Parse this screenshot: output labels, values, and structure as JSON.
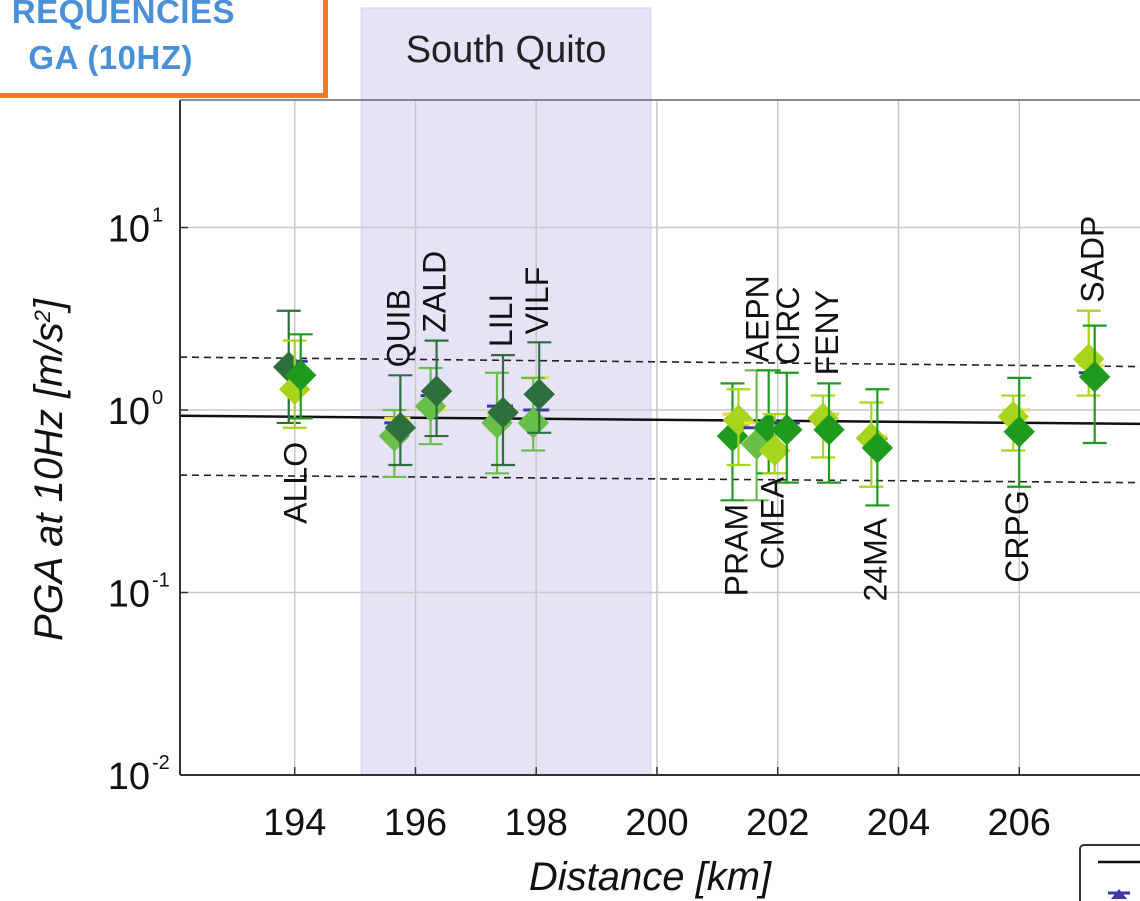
{
  "title_box": {
    "line1": "REQUENCIES",
    "line2": "GA (10HZ)",
    "accent_color": "#ec7b30",
    "text_color": "#4a90d9"
  },
  "chart_data": {
    "type": "scatter",
    "xlabel": "Distance [km]",
    "ylabel_main": "PGA at 10Hz [m/s",
    "ylabel_sup": "2",
    "ylabel_end": "]",
    "yscale": "log",
    "xlim": [
      192.1,
      208.0
    ],
    "ylim": [
      0.01,
      50
    ],
    "x_ticks": [
      194,
      196,
      198,
      200,
      202,
      204,
      206
    ],
    "y_ticks": [
      {
        "value": 10,
        "base": "10",
        "exp": "1"
      },
      {
        "value": 1,
        "base": "10",
        "exp": "0"
      },
      {
        "value": 0.1,
        "base": "10",
        "exp": "-1"
      },
      {
        "value": 0.01,
        "base": "10",
        "exp": "-2"
      }
    ],
    "grid": true,
    "shaded_region": {
      "label": "South Quito",
      "x_range": [
        195.1,
        199.9
      ],
      "color": "#e6e3f7"
    },
    "trend_line": {
      "y_at_xmin": 0.93,
      "y_at_xmax": 0.84
    },
    "bounds_upper": {
      "y_at_xmin": 1.95,
      "y_at_xmax": 1.73
    },
    "bounds_lower": {
      "y_at_xmin": 0.44,
      "y_at_xmax": 0.4
    },
    "colors": {
      "c1": "#2f6f3e",
      "c2": "#1e9a1e",
      "c3": "#6abf4b",
      "c4": "#a8d51c",
      "yellow": "#f2dc4a",
      "blue": "#3b3aa5"
    },
    "stations": [
      {
        "name": "ALLO",
        "x": 194.0,
        "label_pos": "below",
        "blue": 1.85,
        "yellow": 1.6,
        "markers": [
          {
            "c": "c1",
            "y": 1.72,
            "lo": 0.85,
            "hi": 3.5
          },
          {
            "c": "c4",
            "y": 1.3,
            "lo": 0.8,
            "hi": 2.4
          },
          {
            "c": "c2",
            "y": 1.55,
            "lo": 0.9,
            "hi": 2.6
          }
        ]
      },
      {
        "name": "QUIB",
        "x": 195.7,
        "label_pos": "above",
        "blue": 0.85,
        "yellow": 0.9,
        "markers": [
          {
            "c": "c3",
            "y": 0.72,
            "lo": 0.43,
            "hi": 1.0
          },
          {
            "c": "c1",
            "y": 0.8,
            "lo": 0.5,
            "hi": 1.55
          }
        ]
      },
      {
        "name": "ZALD",
        "x": 196.3,
        "label_pos": "above",
        "blue": 1.2,
        "yellow": 1.0,
        "markers": [
          {
            "c": "c3",
            "y": 1.05,
            "lo": 0.65,
            "hi": 1.7
          },
          {
            "c": "c1",
            "y": 1.27,
            "lo": 0.72,
            "hi": 2.4
          }
        ]
      },
      {
        "name": "LILI",
        "x": 197.4,
        "label_pos": "above",
        "blue": 1.05,
        "yellow": 0.95,
        "markers": [
          {
            "c": "c3",
            "y": 0.85,
            "lo": 0.45,
            "hi": 1.6
          },
          {
            "c": "c1",
            "y": 0.97,
            "lo": 0.5,
            "hi": 2.0
          }
        ]
      },
      {
        "name": "VILF",
        "x": 198.0,
        "label_pos": "above",
        "blue": 1.0,
        "yellow": 1.5,
        "markers": [
          {
            "c": "c3",
            "y": 0.85,
            "lo": 0.6,
            "hi": 1.5
          },
          {
            "c": "c1",
            "y": 1.22,
            "lo": 0.75,
            "hi": 2.35
          }
        ]
      },
      {
        "name": "PRAM",
        "x": 201.3,
        "label_pos": "below",
        "blue": 0.95,
        "yellow": 0.95,
        "markers": [
          {
            "c": "c2",
            "y": 0.72,
            "lo": 0.32,
            "hi": 1.4
          },
          {
            "c": "c4",
            "y": 0.88,
            "lo": 0.5,
            "hi": 1.3
          }
        ]
      },
      {
        "name": "AEPN",
        "x": 201.65,
        "label_pos": "above",
        "blue": 0.8,
        "yellow": 0.85,
        "markers": [
          {
            "c": "c3",
            "y": 0.65,
            "lo": 0.32,
            "hi": 1.65
          }
        ]
      },
      {
        "name": "CMEA",
        "x": 201.9,
        "label_pos": "below",
        "blue": 0.8,
        "yellow": 0.85,
        "markers": [
          {
            "c": "c2",
            "y": 0.8,
            "lo": 0.45,
            "hi": 1.65
          },
          {
            "c": "c4",
            "y": 0.6,
            "lo": 0.45,
            "hi": 0.95
          }
        ]
      },
      {
        "name": "CIRC",
        "x": 202.15,
        "label_pos": "above",
        "blue": 0.85,
        "yellow": 0.8,
        "markers": [
          {
            "c": "c2",
            "y": 0.78,
            "lo": 0.4,
            "hi": 1.6
          }
        ]
      },
      {
        "name": "FENY",
        "x": 202.8,
        "label_pos": "above",
        "blue": 0.95,
        "yellow": 0.95,
        "markers": [
          {
            "c": "c4",
            "y": 0.9,
            "lo": 0.55,
            "hi": 1.2
          },
          {
            "c": "c2",
            "y": 0.78,
            "lo": 0.4,
            "hi": 1.4
          }
        ]
      },
      {
        "name": "24MA",
        "x": 203.6,
        "label_pos": "below",
        "blue": 0.7,
        "yellow": 0.72,
        "markers": [
          {
            "c": "c4",
            "y": 0.7,
            "lo": 0.38,
            "hi": 1.1
          },
          {
            "c": "c2",
            "y": 0.62,
            "lo": 0.3,
            "hi": 1.3
          }
        ]
      },
      {
        "name": "CRPG",
        "x": 205.95,
        "label_pos": "below",
        "blue": 1.0,
        "yellow": 1.0,
        "markers": [
          {
            "c": "c4",
            "y": 0.92,
            "lo": 0.6,
            "hi": 1.2
          },
          {
            "c": "c2",
            "y": 0.76,
            "lo": 0.38,
            "hi": 1.5
          }
        ]
      },
      {
        "name": "SADP",
        "x": 207.2,
        "label_pos": "above",
        "blue": 1.6,
        "yellow": 1.75,
        "markers": [
          {
            "c": "c4",
            "y": 1.9,
            "lo": 1.2,
            "hi": 3.5
          },
          {
            "c": "c2",
            "y": 1.52,
            "lo": 0.66,
            "hi": 2.9
          }
        ]
      }
    ]
  }
}
